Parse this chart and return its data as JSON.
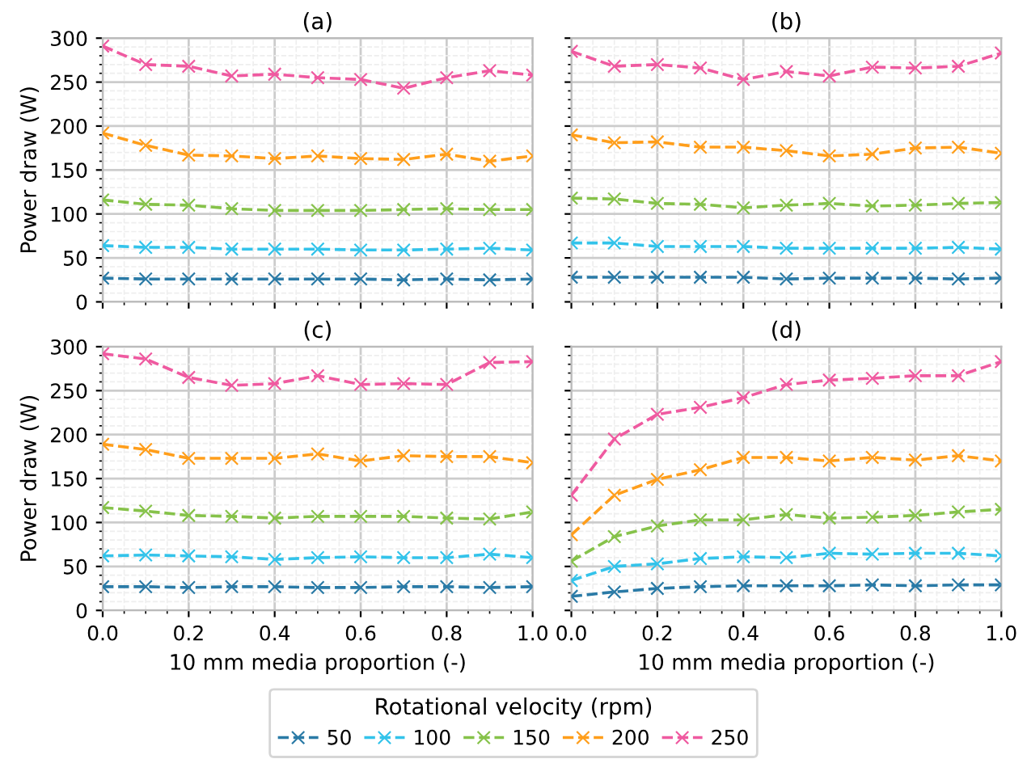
{
  "chart_data": [
    {
      "type": "line",
      "title": "(a)",
      "ylabel": "Power draw (W)",
      "x": [
        0,
        0.1,
        0.2,
        0.3,
        0.4,
        0.5,
        0.6,
        0.7,
        0.8,
        0.9,
        1.0
      ],
      "xlim": [
        0,
        1
      ],
      "xticks": [
        {
          "value": 0,
          "label": null
        },
        {
          "value": 0.2,
          "label": null
        },
        {
          "value": 0.4,
          "label": null
        },
        {
          "value": 0.6,
          "label": null
        },
        {
          "value": 0.8,
          "label": null
        },
        {
          "value": 1,
          "label": null
        }
      ],
      "ylim": [
        0,
        300
      ],
      "yticks": [
        0,
        50,
        100,
        150,
        200,
        250,
        300
      ],
      "tick_labels": "y",
      "grid": true,
      "marker": "cross",
      "line_style": "dashed",
      "series": [
        {
          "color": "#2a7aa6",
          "values": [
            27,
            26,
            26,
            26,
            26,
            26,
            26,
            25,
            26,
            25,
            26
          ]
        },
        {
          "color": "#33c3ea",
          "values": [
            64,
            62,
            62,
            60,
            60,
            60,
            59,
            59,
            60,
            61,
            59
          ]
        },
        {
          "color": "#86c24a",
          "values": [
            116,
            111,
            110,
            106,
            104,
            104,
            104,
            105,
            106,
            105,
            105
          ]
        },
        {
          "color": "#ff9e1b",
          "values": [
            192,
            178,
            167,
            166,
            163,
            166,
            163,
            162,
            168,
            160,
            166
          ]
        },
        {
          "color": "#ef5aa0",
          "values": [
            291,
            270,
            268,
            257,
            259,
            255,
            253,
            243,
            255,
            263,
            258
          ]
        }
      ]
    },
    {
      "type": "line",
      "title": "(b)",
      "x": [
        0,
        0.1,
        0.2,
        0.3,
        0.4,
        0.5,
        0.6,
        0.7,
        0.8,
        0.9,
        1.0
      ],
      "xlim": [
        0,
        1
      ],
      "xticks": [
        {
          "value": 0,
          "label": null
        },
        {
          "value": 0.2,
          "label": null
        },
        {
          "value": 0.4,
          "label": null
        },
        {
          "value": 0.6,
          "label": null
        },
        {
          "value": 0.8,
          "label": null
        },
        {
          "value": 1,
          "label": null
        }
      ],
      "ylim": [
        0,
        300
      ],
      "yticks": [
        0,
        50,
        100,
        150,
        200,
        250,
        300
      ],
      "tick_labels": false,
      "grid": true,
      "marker": "cross",
      "line_style": "dashed",
      "series": [
        {
          "color": "#2a7aa6",
          "values": [
            28,
            28,
            28,
            28,
            28,
            26,
            27,
            27,
            27,
            26,
            27
          ]
        },
        {
          "color": "#33c3ea",
          "values": [
            67,
            67,
            63,
            63,
            63,
            61,
            61,
            61,
            61,
            62,
            60
          ]
        },
        {
          "color": "#86c24a",
          "values": [
            118,
            117,
            112,
            111,
            107,
            110,
            112,
            109,
            110,
            112,
            113
          ]
        },
        {
          "color": "#ff9e1b",
          "values": [
            190,
            181,
            182,
            176,
            176,
            172,
            166,
            168,
            175,
            176,
            169
          ]
        },
        {
          "color": "#ef5aa0",
          "values": [
            285,
            268,
            270,
            266,
            253,
            262,
            257,
            267,
            266,
            268,
            283
          ]
        }
      ]
    },
    {
      "type": "line",
      "title": "(c)",
      "xlabel": "10 mm media proportion (-)",
      "ylabel": "Power draw (W)",
      "x": [
        0,
        0.1,
        0.2,
        0.3,
        0.4,
        0.5,
        0.6,
        0.7,
        0.8,
        0.9,
        1.0
      ],
      "xlim": [
        0,
        1
      ],
      "xticks": [
        {
          "value": 0,
          "label": "0.0"
        },
        {
          "value": 0.2,
          "label": "0.2"
        },
        {
          "value": 0.4,
          "label": "0.4"
        },
        {
          "value": 0.6,
          "label": "0.6"
        },
        {
          "value": 0.8,
          "label": "0.8"
        },
        {
          "value": 1,
          "label": "1.0"
        }
      ],
      "ylim": [
        0,
        300
      ],
      "yticks": [
        0,
        50,
        100,
        150,
        200,
        250,
        300
      ],
      "grid": true,
      "marker": "cross",
      "line_style": "dashed",
      "series": [
        {
          "color": "#2a7aa6",
          "values": [
            27,
            27,
            26,
            27,
            27,
            26,
            26,
            27,
            27,
            26,
            27
          ]
        },
        {
          "color": "#33c3ea",
          "values": [
            62,
            63,
            62,
            61,
            58,
            60,
            61,
            60,
            60,
            64,
            60
          ]
        },
        {
          "color": "#86c24a",
          "values": [
            117,
            113,
            108,
            107,
            105,
            107,
            107,
            107,
            105,
            104,
            112
          ]
        },
        {
          "color": "#ff9e1b",
          "values": [
            189,
            183,
            173,
            173,
            173,
            178,
            170,
            176,
            175,
            175,
            168
          ]
        },
        {
          "color": "#ef5aa0",
          "values": [
            292,
            286,
            265,
            256,
            258,
            267,
            257,
            258,
            257,
            282,
            283
          ]
        }
      ]
    },
    {
      "type": "line",
      "title": "(d)",
      "xlabel": "10 mm media proportion (-)",
      "x": [
        0,
        0.1,
        0.2,
        0.3,
        0.4,
        0.5,
        0.6,
        0.7,
        0.8,
        0.9,
        1.0
      ],
      "xlim": [
        0,
        1
      ],
      "xticks": [
        {
          "value": 0,
          "label": "0.0"
        },
        {
          "value": 0.2,
          "label": "0.2"
        },
        {
          "value": 0.4,
          "label": "0.4"
        },
        {
          "value": 0.6,
          "label": "0.6"
        },
        {
          "value": 0.8,
          "label": "0.8"
        },
        {
          "value": 1,
          "label": "1.0"
        }
      ],
      "ylim": [
        0,
        300
      ],
      "yticks": [
        0,
        50,
        100,
        150,
        200,
        250,
        300
      ],
      "tick_labels": "x",
      "grid": true,
      "marker": "cross",
      "line_style": "dashed",
      "legend": "bottom",
      "legend_title": "Rotational velocity (rpm)",
      "series": [
        {
          "name": "50",
          "color": "#2a7aa6",
          "values": [
            16,
            21,
            25,
            27,
            28,
            28,
            28,
            29,
            28,
            29,
            29
          ]
        },
        {
          "name": "100",
          "color": "#33c3ea",
          "values": [
            34,
            50,
            53,
            59,
            61,
            60,
            65,
            64,
            65,
            65,
            62
          ]
        },
        {
          "name": "150",
          "color": "#86c24a",
          "values": [
            56,
            84,
            96,
            103,
            103,
            109,
            105,
            106,
            108,
            112,
            115
          ]
        },
        {
          "name": "200",
          "color": "#ff9e1b",
          "values": [
            86,
            131,
            149,
            160,
            174,
            174,
            170,
            174,
            171,
            176,
            170
          ]
        },
        {
          "name": "250",
          "color": "#ef5aa0",
          "values": [
            131,
            195,
            223,
            231,
            242,
            257,
            262,
            264,
            267,
            267,
            283
          ]
        }
      ]
    }
  ]
}
